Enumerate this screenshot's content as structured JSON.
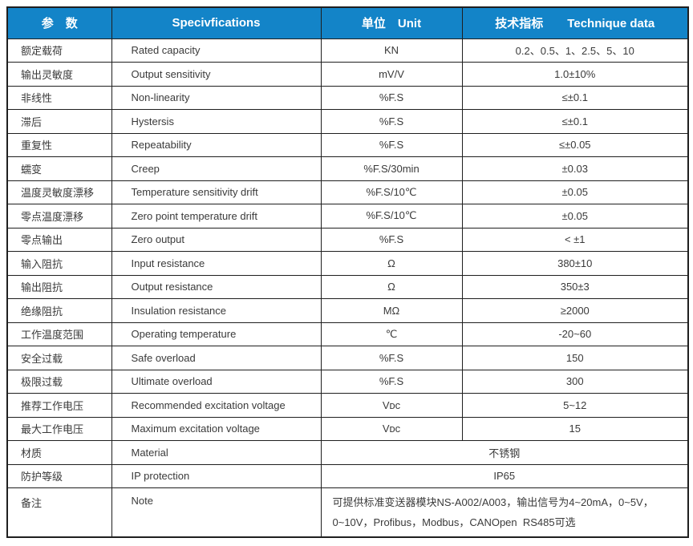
{
  "table": {
    "headers": {
      "param": "参　数",
      "spec": "Specivfications",
      "unit": "单位　Unit",
      "data": "技术指标　　Technique data"
    },
    "rows": [
      {
        "param": "额定载荷",
        "spec": "Rated capacity",
        "unit": "KN",
        "value": "0.2、0.5、1、2.5、5、10"
      },
      {
        "param": "输出灵敏度",
        "spec": "Output sensitivity",
        "unit": "mV/V",
        "value": "1.0±10%"
      },
      {
        "param": "非线性",
        "spec": "Non-linearity",
        "unit": "%F.S",
        "value": "≤±0.1"
      },
      {
        "param": "滞后",
        "spec": "Hystersis",
        "unit": "%F.S",
        "value": "≤±0.1"
      },
      {
        "param": "重复性",
        "spec": "Repeatability",
        "unit": "%F.S",
        "value": "≤±0.05"
      },
      {
        "param": "蠕变",
        "spec": "Creep",
        "unit": "%F.S/30min",
        "value": "±0.03"
      },
      {
        "param": "温度灵敏度漂移",
        "spec": "Temperature sensitivity drift",
        "unit": "%F.S/10℃",
        "value": "±0.05"
      },
      {
        "param": "零点温度漂移",
        "spec": "Zero point temperature drift",
        "unit": "%F.S/10℃",
        "value": "±0.05"
      },
      {
        "param": "零点输出",
        "spec": "Zero output",
        "unit": "%F.S",
        "value": "< ±1"
      },
      {
        "param": "输入阻抗",
        "spec": "Input resistance",
        "unit": "Ω",
        "value": "380±10"
      },
      {
        "param": "输出阻抗",
        "spec": "Output resistance",
        "unit": "Ω",
        "value": "350±3"
      },
      {
        "param": "绝缘阻抗",
        "spec": "Insulation resistance",
        "unit": "MΩ",
        "value": "≥2000"
      },
      {
        "param": "工作温度范围",
        "spec": "Operating temperature",
        "unit": "℃",
        "value": "-20~60"
      },
      {
        "param": "安全过载",
        "spec": "Safe overload",
        "unit": "%F.S",
        "value": "150"
      },
      {
        "param": "极限过载",
        "spec": "Ultimate overload",
        "unit": "%F.S",
        "value": "300"
      },
      {
        "param": "推荐工作电压",
        "spec": "Recommended excitation voltage",
        "unit": "Vᴅᴄ",
        "value": "5~12"
      },
      {
        "param": "最大工作电压",
        "spec": "Maximum excitation voltage",
        "unit": "Vᴅᴄ",
        "value": "15"
      },
      {
        "param": "材质",
        "spec": "Material",
        "merged_value": "不锈钢"
      },
      {
        "param": "防护等级",
        "spec": "IP protection",
        "merged_value": "IP65"
      },
      {
        "param": "备注",
        "spec": "Note",
        "merged_value": "可提供标准变送器模块NS-A002/A003，输出信号为4~20mA，0~5V，0~10V，Profibus，Modbus，CANOpen  RS485可选",
        "merged_align": "left",
        "tall": true
      }
    ],
    "colors": {
      "header_bg": "#1384c8",
      "header_text": "#ffffff",
      "body_text": "#3a3a3a",
      "border": "#1f1f1f"
    }
  }
}
